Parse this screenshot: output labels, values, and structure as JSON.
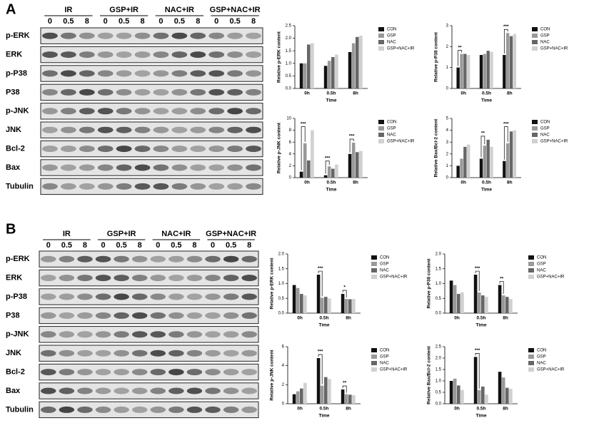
{
  "blots": {
    "panels": [
      "A",
      "B"
    ],
    "groups": [
      "IR",
      "GSP+IR",
      "NAC+IR",
      "GSP+NAC+IR"
    ],
    "doses": [
      "0",
      "0.5",
      "8"
    ],
    "rows": [
      "p-ERK",
      "ERK",
      "p-P38",
      "P38",
      "p-JNK",
      "JNK",
      "Bcl-2",
      "Bax",
      "Tubulin"
    ]
  },
  "chart_data": [
    {
      "type": "bar",
      "y_label": "Relative p-ERK content",
      "x_label": "Time",
      "categories": [
        "0h",
        "0.5h",
        "8h"
      ],
      "series": [
        {
          "name": "CON",
          "color": "#111111",
          "values": [
            1.0,
            0.9,
            1.45
          ]
        },
        {
          "name": "GSP",
          "color": "#999999",
          "values": [
            1.0,
            1.1,
            1.8
          ]
        },
        {
          "name": "NAC",
          "color": "#666666",
          "values": [
            1.75,
            1.25,
            2.05
          ]
        },
        {
          "name": "GSP+NAC+IR",
          "color": "#d0d0d0",
          "values": [
            1.8,
            1.35,
            2.1
          ]
        }
      ],
      "ylim": [
        0,
        2.5
      ],
      "yticks": [
        {
          "value": 0,
          "label": "0.0"
        },
        0.5,
        {
          "value": 1,
          "label": "1.0"
        },
        1.5,
        {
          "value": 2,
          "label": "2.0"
        },
        2.5
      ],
      "annotations": []
    },
    {
      "type": "bar",
      "y_label": "Relative p-P38 content",
      "x_label": "Time",
      "categories": [
        "0h",
        "0.5h",
        "8h"
      ],
      "series": [
        {
          "name": "CON",
          "color": "#111111",
          "values": [
            1.0,
            1.6,
            1.6
          ]
        },
        {
          "name": "GSP",
          "color": "#999999",
          "values": [
            1.65,
            1.65,
            2.65
          ]
        },
        {
          "name": "NAC",
          "color": "#666666",
          "values": [
            1.65,
            1.8,
            2.5
          ]
        },
        {
          "name": "GSP+NAC+IR",
          "color": "#d0d0d0",
          "values": [
            1.6,
            1.75,
            2.6
          ]
        }
      ],
      "ylim": [
        0,
        3
      ],
      "yticks": [
        0,
        1,
        2,
        3
      ],
      "annotations": [
        {
          "text": "**",
          "category": "0h"
        },
        {
          "text": "***",
          "category": "8h"
        }
      ]
    },
    {
      "type": "bar",
      "y_label": "Relative p-JNK content",
      "x_label": "Time",
      "categories": [
        "0h",
        "0.5h",
        "8h"
      ],
      "series": [
        {
          "name": "CON",
          "color": "#111111",
          "values": [
            1.0,
            0.4,
            4.0
          ]
        },
        {
          "name": "GSP",
          "color": "#999999",
          "values": [
            5.8,
            1.9,
            5.9
          ]
        },
        {
          "name": "NAC",
          "color": "#666666",
          "values": [
            2.9,
            1.5,
            4.3
          ]
        },
        {
          "name": "GSP+NAC+IR",
          "color": "#d0d0d0",
          "values": [
            8.0,
            2.2,
            4.5
          ]
        }
      ],
      "ylim": [
        0,
        10
      ],
      "yticks": [
        0,
        2,
        4,
        6,
        8,
        10
      ],
      "annotations": [
        {
          "text": "***",
          "category": "0h"
        },
        {
          "text": "***",
          "category": "0.5h"
        },
        {
          "text": "***",
          "category": "8h"
        }
      ]
    },
    {
      "type": "bar",
      "y_label": "Relative Bax/Bcl-2 content",
      "x_label": "Time",
      "categories": [
        "0h",
        "0.5h",
        "8h"
      ],
      "series": [
        {
          "name": "CON",
          "color": "#111111",
          "values": [
            1.0,
            1.6,
            1.4
          ]
        },
        {
          "name": "GSP",
          "color": "#999999",
          "values": [
            1.6,
            2.7,
            2.9
          ]
        },
        {
          "name": "NAC",
          "color": "#666666",
          "values": [
            2.6,
            3.2,
            3.9
          ]
        },
        {
          "name": "GSP+NAC+IR",
          "color": "#d0d0d0",
          "values": [
            2.8,
            2.6,
            4.0
          ]
        }
      ],
      "ylim": [
        0,
        5
      ],
      "yticks": [
        0,
        1,
        2,
        3,
        4,
        5
      ],
      "annotations": [
        {
          "text": "**",
          "category": "0.5h"
        },
        {
          "text": "***",
          "category": "8h"
        }
      ]
    },
    {
      "type": "bar",
      "y_label": "Relative p-ERK content",
      "x_label": "Time",
      "categories": [
        "0h",
        "0.5h",
        "8h"
      ],
      "series": [
        {
          "name": "CON",
          "color": "#111111",
          "values": [
            0.95,
            1.3,
            0.65
          ]
        },
        {
          "name": "GSP",
          "color": "#999999",
          "values": [
            0.85,
            0.52,
            0.48
          ]
        },
        {
          "name": "NAC",
          "color": "#666666",
          "values": [
            0.65,
            0.55,
            0.47
          ]
        },
        {
          "name": "GSP+NAC+IR",
          "color": "#d0d0d0",
          "values": [
            0.6,
            0.5,
            0.48
          ]
        }
      ],
      "ylim": [
        0,
        2
      ],
      "yticks": [
        {
          "value": 0,
          "label": "0.0"
        },
        0.5,
        {
          "value": 1,
          "label": "1.0"
        },
        1.5,
        {
          "value": 2,
          "label": "2.0"
        }
      ],
      "annotations": [
        {
          "text": "***",
          "category": "0.5h"
        },
        {
          "text": "*",
          "category": "8h"
        }
      ]
    },
    {
      "type": "bar",
      "y_label": "Relative p-P38 content",
      "x_label": "Time",
      "categories": [
        "0h",
        "0.5h",
        "8h"
      ],
      "series": [
        {
          "name": "CON",
          "color": "#111111",
          "values": [
            1.1,
            1.3,
            0.95
          ]
        },
        {
          "name": "GSP",
          "color": "#999999",
          "values": [
            0.95,
            0.7,
            0.6
          ]
        },
        {
          "name": "NAC",
          "color": "#666666",
          "values": [
            0.65,
            0.6,
            0.55
          ]
        },
        {
          "name": "GSP+NAC+IR",
          "color": "#d0d0d0",
          "values": [
            0.7,
            0.55,
            0.48
          ]
        }
      ],
      "ylim": [
        0,
        2
      ],
      "yticks": [
        {
          "value": 0,
          "label": "0.0"
        },
        0.5,
        {
          "value": 1,
          "label": "1.0"
        },
        1.5,
        {
          "value": 2,
          "label": "2.0"
        }
      ],
      "annotations": [
        {
          "text": "***",
          "category": "0.5h"
        },
        {
          "text": "**",
          "category": "8h"
        }
      ]
    },
    {
      "type": "bar",
      "y_label": "Relative p-JNK content",
      "x_label": "Time",
      "categories": [
        "0h",
        "0.5h",
        "8h"
      ],
      "series": [
        {
          "name": "CON",
          "color": "#111111",
          "values": [
            1.0,
            4.8,
            1.5
          ]
        },
        {
          "name": "GSP",
          "color": "#999999",
          "values": [
            1.3,
            1.9,
            1.0
          ]
        },
        {
          "name": "NAC",
          "color": "#666666",
          "values": [
            1.6,
            2.8,
            0.95
          ]
        },
        {
          "name": "GSP+NAC+IR",
          "color": "#d0d0d0",
          "values": [
            2.2,
            2.6,
            0.9
          ]
        }
      ],
      "ylim": [
        0,
        6
      ],
      "yticks": [
        0,
        2,
        4,
        6
      ],
      "annotations": [
        {
          "text": "***",
          "category": "0.5h"
        },
        {
          "text": "**",
          "category": "8h"
        }
      ]
    },
    {
      "type": "bar",
      "y_label": "Relative Bax/Bcl-2 content",
      "x_label": "Time",
      "categories": [
        "0h",
        "0.5h",
        "8h"
      ],
      "series": [
        {
          "name": "CON",
          "color": "#111111",
          "values": [
            1.0,
            2.05,
            1.4
          ]
        },
        {
          "name": "GSP",
          "color": "#999999",
          "values": [
            1.1,
            0.6,
            1.15
          ]
        },
        {
          "name": "NAC",
          "color": "#666666",
          "values": [
            0.8,
            0.75,
            0.7
          ]
        },
        {
          "name": "GSP+NAC+IR",
          "color": "#d0d0d0",
          "values": [
            0.6,
            0.4,
            0.65
          ]
        }
      ],
      "ylim": [
        0,
        2.5
      ],
      "yticks": [
        {
          "value": 0,
          "label": "0.0"
        },
        0.5,
        {
          "value": 1,
          "label": "1.0"
        },
        1.5,
        {
          "value": 2,
          "label": "2.0"
        },
        2.5
      ],
      "annotations": [
        {
          "text": "***",
          "category": "0.5h"
        }
      ]
    }
  ]
}
